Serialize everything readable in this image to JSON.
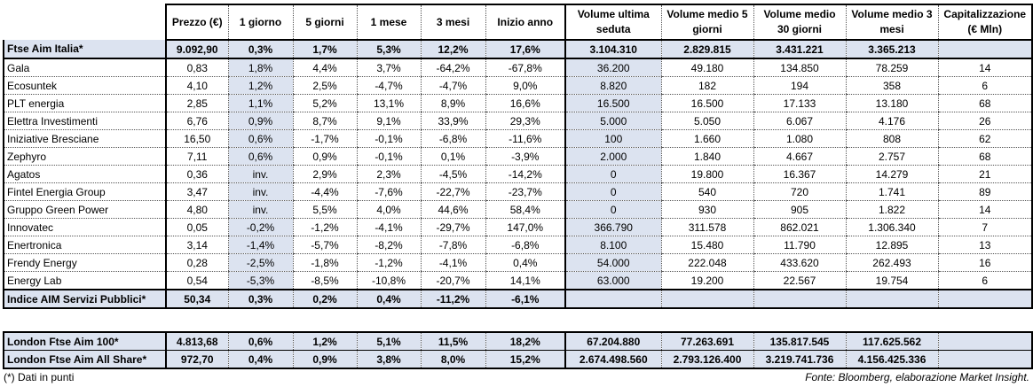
{
  "headers": [
    "Prezzo (€)",
    "1 giorno",
    "5 giorni",
    "1 mese",
    "3 mesi",
    "Inizio anno",
    "Volume ultima seduta",
    "Volume medio 5 giorni",
    "Volume medio 30 giorni",
    "Volume medio 3 mesi",
    "Capitalizzazione (€ Mln)"
  ],
  "index_row": [
    "Ftse Aim Italia*",
    "9.092,90",
    "0,3%",
    "1,7%",
    "5,3%",
    "12,2%",
    "17,6%",
    "3.104.310",
    "2.829.815",
    "3.431.221",
    "3.365.213",
    ""
  ],
  "rows": [
    [
      "Gala",
      "0,83",
      "1,8%",
      "4,4%",
      "3,7%",
      "-64,2%",
      "-67,8%",
      "36.200",
      "49.180",
      "134.850",
      "78.259",
      "14"
    ],
    [
      "Ecosuntek",
      "4,10",
      "1,2%",
      "2,5%",
      "-4,7%",
      "-4,7%",
      "9,0%",
      "8.820",
      "182",
      "194",
      "358",
      "6"
    ],
    [
      "PLT energia",
      "2,85",
      "1,1%",
      "5,2%",
      "13,1%",
      "8,9%",
      "16,6%",
      "16.500",
      "16.500",
      "17.133",
      "13.180",
      "68"
    ],
    [
      "Elettra Investimenti",
      "6,76",
      "0,9%",
      "8,7%",
      "9,1%",
      "33,9%",
      "29,3%",
      "5.000",
      "5.050",
      "6.067",
      "4.176",
      "26"
    ],
    [
      "Iniziative Bresciane",
      "16,50",
      "0,6%",
      "-1,7%",
      "-0,1%",
      "-6,8%",
      "-11,6%",
      "100",
      "1.660",
      "1.080",
      "808",
      "62"
    ],
    [
      "Zephyro",
      "7,11",
      "0,6%",
      "0,9%",
      "-0,1%",
      "0,1%",
      "-3,9%",
      "2.000",
      "1.840",
      "4.667",
      "2.757",
      "68"
    ],
    [
      "Agatos",
      "0,36",
      "inv.",
      "2,9%",
      "2,3%",
      "-4,5%",
      "-14,2%",
      "0",
      "19.800",
      "16.367",
      "14.279",
      "21"
    ],
    [
      "Fintel Energia Group",
      "3,47",
      "inv.",
      "-4,4%",
      "-7,6%",
      "-22,7%",
      "-23,7%",
      "0",
      "540",
      "720",
      "1.741",
      "89"
    ],
    [
      "Gruppo Green Power",
      "4,80",
      "inv.",
      "5,5%",
      "4,0%",
      "44,6%",
      "58,4%",
      "0",
      "930",
      "905",
      "1.822",
      "14"
    ],
    [
      "Innovatec",
      "0,05",
      "-0,2%",
      "-1,2%",
      "-4,1%",
      "-29,7%",
      "147,0%",
      "366.790",
      "311.578",
      "862.021",
      "1.306.340",
      "7"
    ],
    [
      "Enertronica",
      "3,14",
      "-1,4%",
      "-5,7%",
      "-8,2%",
      "-7,8%",
      "-6,8%",
      "8.100",
      "15.480",
      "11.790",
      "12.895",
      "13"
    ],
    [
      "Frendy Energy",
      "0,28",
      "-2,5%",
      "-1,8%",
      "-1,2%",
      "-4,1%",
      "0,4%",
      "54.000",
      "222.048",
      "433.620",
      "262.493",
      "16"
    ],
    [
      "Energy Lab",
      "0,54",
      "-5,3%",
      "-8,5%",
      "-10,8%",
      "-20,7%",
      "14,1%",
      "63.000",
      "19.200",
      "22.567",
      "19.754",
      "6"
    ]
  ],
  "sector_row": [
    "Indice AIM Servizi Pubblici*",
    "50,34",
    "0,3%",
    "0,2%",
    "0,4%",
    "-11,2%",
    "-6,1%",
    "",
    "",
    "",
    "",
    ""
  ],
  "london_rows": [
    [
      "London Ftse Aim 100*",
      "4.813,68",
      "0,6%",
      "1,2%",
      "5,1%",
      "11,5%",
      "18,2%",
      "67.204.880",
      "77.263.691",
      "135.817.545",
      "117.625.562",
      ""
    ],
    [
      "London Ftse Aim All Share*",
      "972,70",
      "0,4%",
      "0,9%",
      "3,8%",
      "8,0%",
      "15,2%",
      "2.674.498.560",
      "2.793.126.400",
      "3.219.741.736",
      "4.156.425.336",
      ""
    ]
  ],
  "footnote": "(*) Dati in punti",
  "source": "Fonte: Bloomberg, elaborazione Market Insight."
}
